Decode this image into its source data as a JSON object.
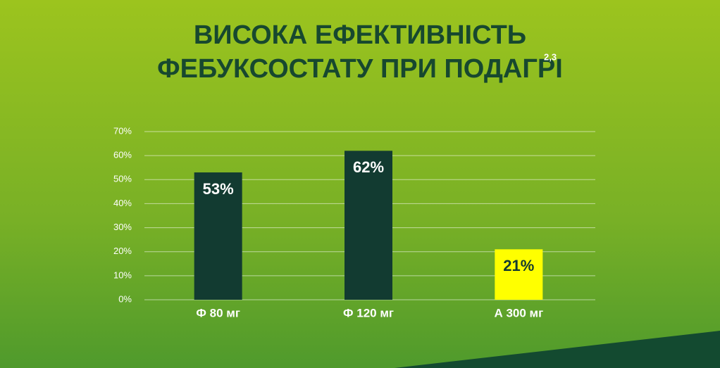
{
  "chart_data": {
    "type": "bar",
    "title": [
      "ВИСОКА ЕФЕКТИВНІСТЬ",
      "ФЕБУКСОСТАТУ ПРИ ПОДАГРІ"
    ],
    "title_superscript": "2,3",
    "categories": [
      "Ф 80 мг",
      "Ф 120 мг",
      "А 300 мг"
    ],
    "values": [
      53,
      62,
      21
    ],
    "value_labels": [
      "53%",
      "62%",
      "21%"
    ],
    "colors": [
      "#123b31",
      "#123b31",
      "#ffff00"
    ],
    "ylim": [
      0,
      70
    ],
    "yticks": [
      {
        "value": 0,
        "label": "0%"
      },
      {
        "value": 10,
        "label": "10%"
      },
      {
        "value": 20,
        "label": "20%"
      },
      {
        "value": 30,
        "label": "30%"
      },
      {
        "value": 40,
        "label": "40%"
      },
      {
        "value": 50,
        "label": "50%"
      },
      {
        "value": 60,
        "label": "60%"
      },
      {
        "value": 70,
        "label": "70%"
      }
    ],
    "grid": true
  }
}
